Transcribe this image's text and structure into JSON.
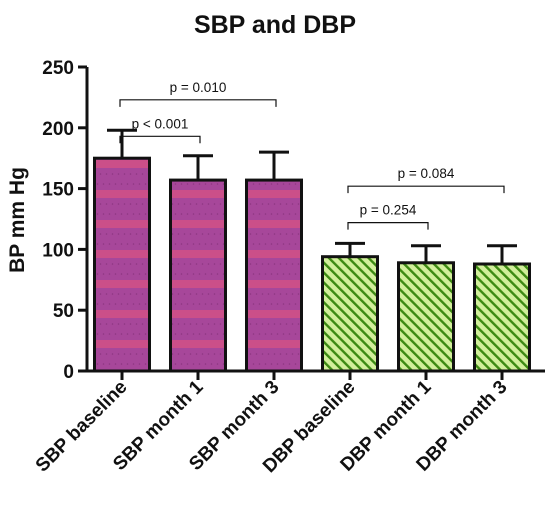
{
  "chart_data": {
    "type": "bar",
    "title": "SBP and DBP",
    "xlabel": "",
    "ylabel": "BP mm Hg",
    "ylim": [
      0,
      250
    ],
    "yticks": [
      0,
      50,
      100,
      150,
      200,
      250
    ],
    "grid": false,
    "legend": "none",
    "categories": [
      "SBP baseline",
      "SBP month 1",
      "SBP month 3",
      "DBP baseline",
      "DBP month 1",
      "DBP month 3"
    ],
    "values": [
      175,
      157,
      157,
      94,
      89,
      88
    ],
    "error_upper": [
      198,
      177,
      180,
      105,
      103,
      103
    ],
    "bar_styles": [
      "sbp",
      "sbp",
      "sbp",
      "dbp",
      "dbp",
      "dbp"
    ],
    "annotations": [
      {
        "text": "p = 0.010",
        "from": 0,
        "to": 2,
        "y": 223
      },
      {
        "text": "p < 0.001",
        "from": 0,
        "to": 1,
        "y": 193
      },
      {
        "text": "p = 0.084",
        "from": 3,
        "to": 5,
        "y": 152
      },
      {
        "text": "p = 0.254",
        "from": 3,
        "to": 4,
        "y": 122
      }
    ],
    "colors": {
      "sbp_fill": "#a7479a",
      "sbp_stripe": "#e8557b",
      "dbp_fill": "#d2ef9b",
      "dbp_hatch": "#3c8a12",
      "axis": "#111111"
    }
  }
}
